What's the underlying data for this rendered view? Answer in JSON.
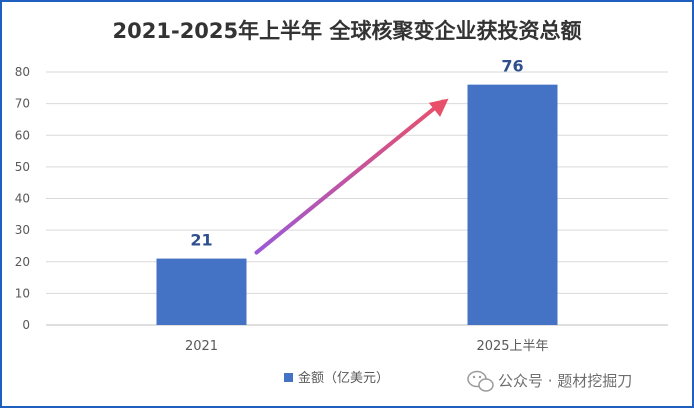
{
  "chart_data": {
    "type": "bar",
    "title": "2021-2025年上半年 全球核聚变企业获投资总额",
    "categories": [
      "2021",
      "2025上半年"
    ],
    "series": [
      {
        "name": "金额（亿美元）",
        "values": [
          21,
          76
        ],
        "data_labels": [
          "21",
          "76"
        ]
      }
    ],
    "ylim": [
      0,
      80
    ],
    "yticks": [
      "0",
      "10",
      "20",
      "30",
      "40",
      "50",
      "60",
      "70",
      "80"
    ],
    "xlabel": "",
    "ylabel": "",
    "grid": true,
    "legend_position": "bottom",
    "annotation": "arrow-from-2021-to-2025上半年"
  },
  "watermark": "公众号 · 题材挖掘刀",
  "colors": {
    "bar": "#4472c4",
    "data_label": "#2f4f8f",
    "title": "#333333",
    "grid": "#d9d9d9",
    "axis_text": "#595959",
    "frame": "#1f5fbf",
    "arrow_start": "#9b59d6",
    "arrow_end": "#e8506a"
  }
}
